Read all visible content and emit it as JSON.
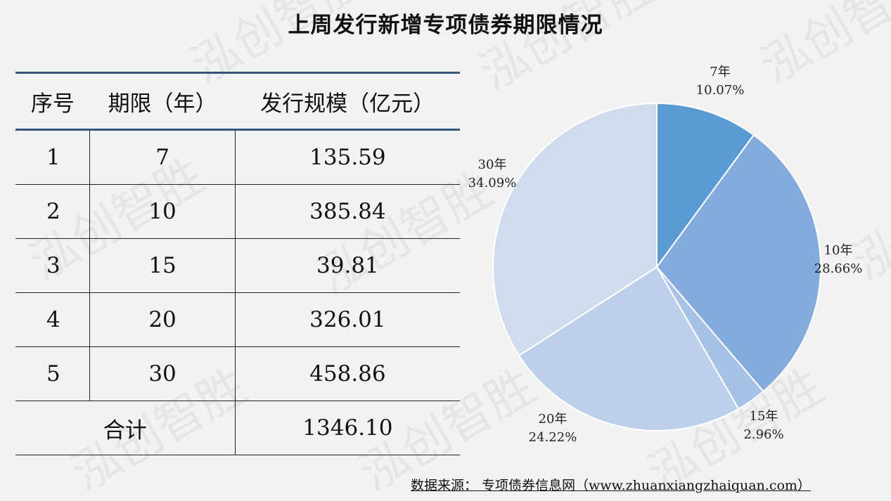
{
  "title": "上周发行新增专项债券期限情况",
  "table": {
    "headers": [
      "序号",
      "期限（年）",
      "发行规模（亿元）"
    ],
    "rows": [
      {
        "no": "1",
        "term": "7",
        "amount": "135.59"
      },
      {
        "no": "2",
        "term": "10",
        "amount": "385.84"
      },
      {
        "no": "3",
        "term": "15",
        "amount": "39.81"
      },
      {
        "no": "4",
        "term": "20",
        "amount": "326.01"
      },
      {
        "no": "5",
        "term": "30",
        "amount": "458.86"
      }
    ],
    "total_label": "合计",
    "total_value": "1346.10"
  },
  "chart_data": {
    "type": "pie",
    "categories": [
      "7年",
      "10年",
      "15年",
      "20年",
      "30年"
    ],
    "values": [
      10.07,
      28.66,
      2.96,
      24.22,
      34.09
    ],
    "value_labels": [
      "10.07%",
      "28.66%",
      "2.96%",
      "24.22%",
      "34.09%"
    ],
    "colors": [
      "#5b9bd5",
      "#83acdc",
      "#a7c2e6",
      "#bdd0ea",
      "#cfdcee"
    ]
  },
  "watermark": "泓创智胜",
  "source_text": "数据来源：  专项债券信息网（www.zhuanxiangzhaiquan.com）"
}
